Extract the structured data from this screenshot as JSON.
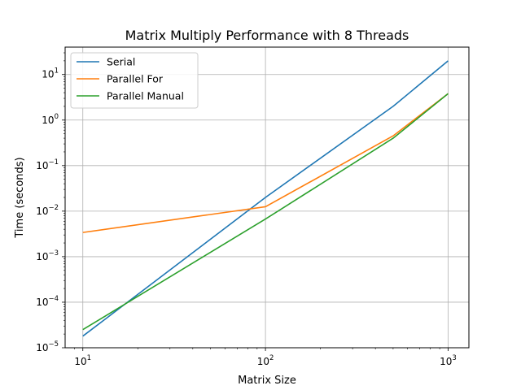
{
  "chart_data": {
    "type": "line",
    "title": "Matrix Multiply Performance with 8 Threads",
    "xlabel": "Matrix Size",
    "ylabel": "Time (seconds)",
    "xscale": "log",
    "yscale": "log",
    "xlim": [
      8,
      1300
    ],
    "ylim": [
      1e-05,
      40
    ],
    "grid": true,
    "legend": "top-left",
    "x_major_ticks": [
      {
        "value": 10,
        "base": "10",
        "exp": "1"
      },
      {
        "value": 100,
        "base": "10",
        "exp": "2"
      },
      {
        "value": 1000,
        "base": "10",
        "exp": "3"
      }
    ],
    "y_major_ticks": [
      {
        "value": 1e-05,
        "base": "10",
        "exp": "−5"
      },
      {
        "value": 0.0001,
        "base": "10",
        "exp": "−4"
      },
      {
        "value": 0.001,
        "base": "10",
        "exp": "−3"
      },
      {
        "value": 0.01,
        "base": "10",
        "exp": "−2"
      },
      {
        "value": 0.1,
        "base": "10",
        "exp": "−1"
      },
      {
        "value": 1,
        "base": "10",
        "exp": "0"
      },
      {
        "value": 10,
        "base": "10",
        "exp": "1"
      }
    ],
    "x": [
      10,
      100,
      500,
      1000
    ],
    "series": [
      {
        "name": "Serial",
        "color": "#1f77b4",
        "values": [
          1.8e-05,
          0.02,
          2.0,
          20.0
        ]
      },
      {
        "name": "Parallel For",
        "color": "#ff7f0e",
        "values": [
          0.0034,
          0.0125,
          0.45,
          3.8
        ]
      },
      {
        "name": "Parallel Manual",
        "color": "#2ca02c",
        "values": [
          2.5e-05,
          0.0067,
          0.4,
          3.8
        ]
      }
    ]
  }
}
